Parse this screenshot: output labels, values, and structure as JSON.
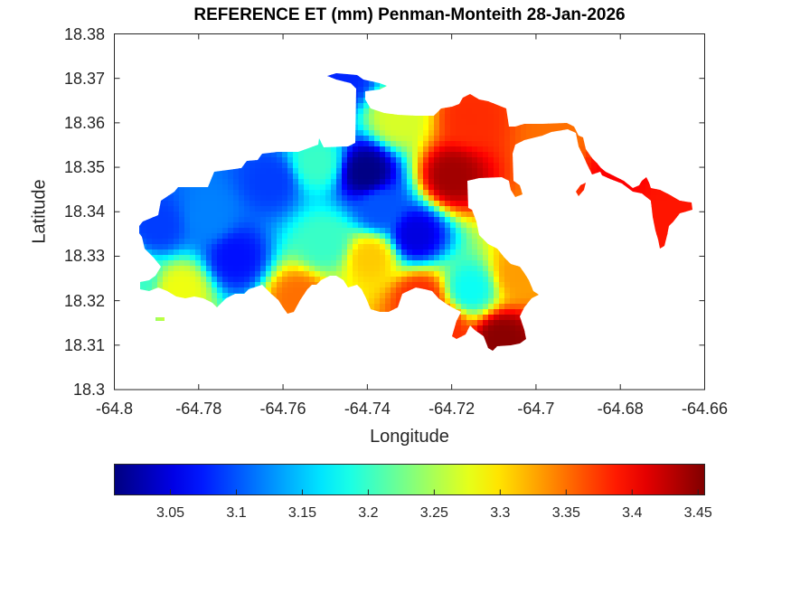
{
  "chart_data": {
    "type": "heatmap",
    "title": "REFERENCE ET (mm) Penman-Monteith 28-Jan-2026",
    "xlabel": "Longitude",
    "ylabel": "Latitude",
    "xlim": [
      -64.8,
      -64.66
    ],
    "ylim": [
      18.3,
      18.38
    ],
    "xticks": [
      "-64.8",
      "-64.78",
      "-64.76",
      "-64.74",
      "-64.72",
      "-64.7",
      "-64.68",
      "-64.66"
    ],
    "yticks": [
      "18.38",
      "18.37",
      "18.36",
      "18.35",
      "18.34",
      "18.33",
      "18.32",
      "18.31",
      "18.3"
    ],
    "colormap": "jet",
    "clim": [
      3.0075,
      3.455
    ],
    "colorbar_ticks": [
      "3.05",
      "3.1",
      "3.15",
      "3.2",
      "3.25",
      "3.3",
      "3.35",
      "3.4",
      "3.45"
    ],
    "colorbar_location": "bottom",
    "grid": false,
    "field_samples": [
      {
        "lon": -64.7403,
        "lat": 18.3489,
        "et": 3.01
      },
      {
        "lon": -64.7199,
        "lat": 18.3479,
        "et": 3.44
      },
      {
        "lon": -64.7082,
        "lat": 18.3114,
        "et": 3.45
      },
      {
        "lon": -64.7157,
        "lat": 18.3611,
        "et": 3.38
      },
      {
        "lon": -64.7392,
        "lat": 18.3296,
        "et": 3.31
      },
      {
        "lon": -64.7713,
        "lat": 18.3296,
        "et": 3.07
      },
      {
        "lon": -64.7895,
        "lat": 18.3367,
        "et": 3.09
      },
      {
        "lon": -64.7842,
        "lat": 18.3225,
        "et": 3.28
      },
      {
        "lon": -64.7563,
        "lat": 18.3205,
        "et": 3.35
      },
      {
        "lon": -64.7285,
        "lat": 18.3347,
        "et": 3.05
      },
      {
        "lon": -64.7156,
        "lat": 18.3225,
        "et": 3.18
      },
      {
        "lon": -64.6686,
        "lat": 18.3388,
        "et": 3.39
      },
      {
        "lon": -64.6942,
        "lat": 18.3571,
        "et": 3.35
      },
      {
        "lon": -64.7456,
        "lat": 18.3703,
        "et": 3.08
      },
      {
        "lon": -64.7328,
        "lat": 18.3611,
        "et": 3.27
      },
      {
        "lon": -64.752,
        "lat": 18.351,
        "et": 3.2
      },
      {
        "lon": -64.7627,
        "lat": 18.3469,
        "et": 3.09
      },
      {
        "lon": -64.7777,
        "lat": 18.3388,
        "et": 3.12
      },
      {
        "lon": -64.7274,
        "lat": 18.3205,
        "et": 3.38
      },
      {
        "lon": -64.7371,
        "lat": 18.3408,
        "et": 3.1
      },
      {
        "lon": -64.75,
        "lat": 18.333,
        "et": 3.2
      },
      {
        "lon": -64.722,
        "lat": 18.314,
        "et": 3.38
      },
      {
        "lon": -64.704,
        "lat": 18.326,
        "et": 3.33
      },
      {
        "lon": -64.68,
        "lat": 18.35,
        "et": 3.4
      },
      {
        "lon": -64.795,
        "lat": 18.325,
        "et": 3.2
      }
    ]
  }
}
